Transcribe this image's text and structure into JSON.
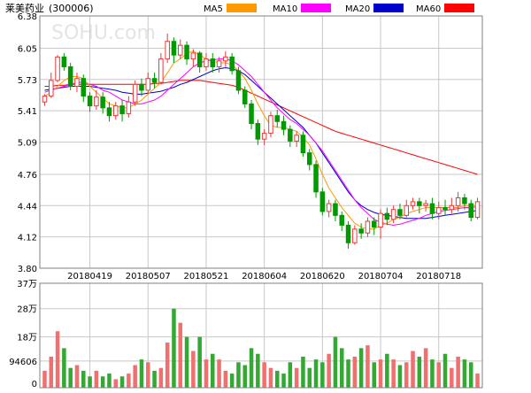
{
  "header": {
    "name": "莱美药业",
    "code": "(300006)"
  },
  "legend": [
    {
      "label": "MA5",
      "color": "#ff9900"
    },
    {
      "label": "MA10",
      "color": "#ff00ff"
    },
    {
      "label": "MA20",
      "color": "#0000cc"
    },
    {
      "label": "MA60",
      "color": "#ff0000"
    }
  ],
  "colors": {
    "up": "#e8393b",
    "down": "#009900",
    "volume_up": "#f07070",
    "volume_down": "#33a833",
    "grid": "#c8c8c8",
    "border": "#808080"
  },
  "watermark": "SOHU.com",
  "chart_data": [
    {
      "type": "candlestick",
      "y_ticks": [
        "6.38",
        "6.05",
        "5.73",
        "5.41",
        "5.09",
        "4.76",
        "4.44",
        "4.12",
        "3.80"
      ],
      "ylim": [
        3.8,
        6.38
      ],
      "x_tick_labels": [
        "20180419",
        "20180507",
        "20180521",
        "20180604",
        "20180620",
        "20180704",
        "20180718"
      ],
      "x_tick_index": [
        7,
        16,
        25,
        34,
        43,
        52,
        61
      ],
      "series": [
        {
          "name": "MA5"
        },
        {
          "name": "MA10"
        },
        {
          "name": "MA20"
        },
        {
          "name": "MA60"
        }
      ],
      "candles": [
        [
          5.5,
          5.56,
          5.46,
          5.58
        ],
        [
          5.56,
          5.72,
          5.54,
          5.8
        ],
        [
          5.72,
          5.96,
          5.7,
          5.98
        ],
        [
          5.96,
          5.86,
          5.82,
          6.0
        ],
        [
          5.86,
          5.66,
          5.62,
          5.9
        ],
        [
          5.66,
          5.74,
          5.6,
          5.8
        ],
        [
          5.74,
          5.56,
          5.5,
          5.78
        ],
        [
          5.56,
          5.46,
          5.4,
          5.6
        ],
        [
          5.46,
          5.55,
          5.42,
          5.62
        ],
        [
          5.55,
          5.44,
          5.38,
          5.6
        ],
        [
          5.44,
          5.36,
          5.3,
          5.5
        ],
        [
          5.36,
          5.46,
          5.32,
          5.5
        ],
        [
          5.46,
          5.38,
          5.3,
          5.52
        ],
        [
          5.38,
          5.5,
          5.34,
          5.56
        ],
        [
          5.5,
          5.68,
          5.46,
          5.72
        ],
        [
          5.68,
          5.62,
          5.56,
          5.74
        ],
        [
          5.62,
          5.74,
          5.58,
          5.8
        ],
        [
          5.74,
          5.7,
          5.64,
          5.8
        ],
        [
          5.7,
          5.94,
          5.68,
          6.0
        ],
        [
          5.94,
          6.12,
          5.9,
          6.2
        ],
        [
          6.12,
          5.98,
          5.9,
          6.16
        ],
        [
          5.98,
          6.08,
          5.94,
          6.14
        ],
        [
          6.08,
          5.94,
          5.88,
          6.12
        ],
        [
          5.94,
          6.0,
          5.86,
          6.04
        ],
        [
          6.0,
          5.86,
          5.8,
          6.02
        ],
        [
          5.86,
          5.94,
          5.82,
          6.0
        ],
        [
          5.94,
          5.86,
          5.8,
          6.0
        ],
        [
          5.86,
          5.92,
          5.8,
          5.96
        ],
        [
          5.92,
          5.96,
          5.86,
          6.02
        ],
        [
          5.96,
          5.82,
          5.78,
          6.0
        ],
        [
          5.82,
          5.62,
          5.58,
          5.86
        ],
        [
          5.62,
          5.48,
          5.44,
          5.66
        ],
        [
          5.48,
          5.28,
          5.22,
          5.52
        ],
        [
          5.28,
          5.12,
          5.06,
          5.32
        ],
        [
          5.12,
          5.18,
          5.06,
          5.22
        ],
        [
          5.18,
          5.36,
          5.14,
          5.4
        ],
        [
          5.36,
          5.3,
          5.24,
          5.42
        ],
        [
          5.3,
          5.22,
          5.16,
          5.36
        ],
        [
          5.22,
          5.1,
          5.04,
          5.26
        ],
        [
          5.1,
          5.16,
          5.04,
          5.2
        ],
        [
          5.16,
          4.98,
          4.94,
          5.2
        ],
        [
          4.98,
          4.86,
          4.8,
          5.02
        ],
        [
          4.86,
          4.58,
          4.52,
          4.9
        ],
        [
          4.58,
          4.38,
          4.34,
          4.62
        ],
        [
          4.38,
          4.46,
          4.32,
          4.5
        ],
        [
          4.46,
          4.34,
          4.28,
          4.5
        ],
        [
          4.34,
          4.24,
          4.18,
          4.38
        ],
        [
          4.24,
          4.06,
          4.0,
          4.28
        ],
        [
          4.06,
          4.2,
          4.04,
          4.24
        ],
        [
          4.2,
          4.16,
          4.1,
          4.26
        ],
        [
          4.16,
          4.28,
          4.12,
          4.32
        ],
        [
          4.28,
          4.22,
          4.14,
          4.32
        ],
        [
          4.22,
          4.36,
          4.1,
          4.4
        ],
        [
          4.36,
          4.3,
          4.24,
          4.42
        ],
        [
          4.3,
          4.4,
          4.26,
          4.44
        ],
        [
          4.4,
          4.34,
          4.3,
          4.46
        ],
        [
          4.34,
          4.44,
          4.32,
          4.5
        ],
        [
          4.44,
          4.48,
          4.4,
          4.52
        ],
        [
          4.48,
          4.44,
          4.36,
          4.52
        ],
        [
          4.44,
          4.46,
          4.38,
          4.5
        ],
        [
          4.46,
          4.36,
          4.3,
          4.52
        ],
        [
          4.36,
          4.42,
          4.3,
          4.48
        ],
        [
          4.42,
          4.4,
          4.34,
          4.5
        ],
        [
          4.4,
          4.44,
          4.36,
          4.52
        ],
        [
          4.44,
          4.52,
          4.38,
          4.58
        ],
        [
          4.52,
          4.46,
          4.4,
          4.56
        ],
        [
          4.46,
          4.32,
          4.28,
          4.5
        ],
        [
          4.32,
          4.48,
          4.3,
          4.52
        ]
      ],
      "ma": {
        "MA5": [
          5.56,
          5.6,
          5.66,
          5.72,
          5.76,
          5.76,
          5.74,
          5.66,
          5.6,
          5.54,
          5.48,
          5.46,
          5.44,
          5.44,
          5.48,
          5.52,
          5.58,
          5.64,
          5.7,
          5.8,
          5.9,
          5.94,
          6.0,
          6.02,
          5.98,
          5.94,
          5.92,
          5.9,
          5.9,
          5.88,
          5.82,
          5.74,
          5.62,
          5.48,
          5.36,
          5.26,
          5.24,
          5.24,
          5.22,
          5.2,
          5.14,
          5.06,
          4.92,
          4.76,
          4.62,
          4.52,
          4.42,
          4.34,
          4.26,
          4.22,
          4.2,
          4.2,
          4.24,
          4.26,
          4.3,
          4.32,
          4.36,
          4.38,
          4.4,
          4.42,
          4.42,
          4.42,
          4.42,
          4.42,
          4.42,
          4.44,
          4.44,
          4.44
        ],
        "MA10": [
          5.6,
          5.62,
          5.64,
          5.66,
          5.68,
          5.7,
          5.7,
          5.68,
          5.66,
          5.62,
          5.6,
          5.56,
          5.52,
          5.5,
          5.48,
          5.48,
          5.5,
          5.52,
          5.56,
          5.62,
          5.68,
          5.74,
          5.8,
          5.86,
          5.9,
          5.92,
          5.93,
          5.94,
          5.94,
          5.92,
          5.88,
          5.82,
          5.76,
          5.68,
          5.6,
          5.52,
          5.44,
          5.38,
          5.32,
          5.28,
          5.22,
          5.16,
          5.08,
          5.0,
          4.9,
          4.8,
          4.7,
          4.6,
          4.5,
          4.42,
          4.36,
          4.3,
          4.27,
          4.25,
          4.24,
          4.25,
          4.27,
          4.29,
          4.31,
          4.34,
          4.36,
          4.38,
          4.39,
          4.4,
          4.41,
          4.42,
          4.42,
          4.43
        ],
        "MA20": [
          5.62,
          5.63,
          5.64,
          5.65,
          5.66,
          5.66,
          5.66,
          5.66,
          5.65,
          5.64,
          5.63,
          5.62,
          5.6,
          5.59,
          5.58,
          5.58,
          5.59,
          5.6,
          5.61,
          5.63,
          5.65,
          5.68,
          5.7,
          5.73,
          5.76,
          5.79,
          5.82,
          5.84,
          5.85,
          5.84,
          5.82,
          5.78,
          5.72,
          5.66,
          5.6,
          5.54,
          5.48,
          5.42,
          5.36,
          5.3,
          5.24,
          5.16,
          5.08,
          4.98,
          4.88,
          4.78,
          4.68,
          4.58,
          4.5,
          4.44,
          4.4,
          4.37,
          4.35,
          4.34,
          4.33,
          4.32,
          4.31,
          4.31,
          4.31,
          4.31,
          4.32,
          4.33,
          4.34,
          4.35,
          4.36,
          4.37,
          4.38,
          4.39
        ],
        "MA60": [
          5.66,
          5.66,
          5.67,
          5.67,
          5.68,
          5.68,
          5.68,
          5.68,
          5.68,
          5.68,
          5.68,
          5.68,
          5.68,
          5.68,
          5.68,
          5.68,
          5.68,
          5.69,
          5.69,
          5.7,
          5.71,
          5.72,
          5.72,
          5.72,
          5.72,
          5.71,
          5.7,
          5.69,
          5.68,
          5.67,
          5.65,
          5.62,
          5.59,
          5.56,
          5.53,
          5.5,
          5.47,
          5.44,
          5.41,
          5.38,
          5.35,
          5.32,
          5.29,
          5.26,
          5.23,
          5.2,
          5.18,
          5.16,
          5.14,
          5.12,
          5.1,
          5.08,
          5.06,
          5.04,
          5.02,
          5.0,
          4.98,
          4.96,
          4.94,
          4.92,
          4.9,
          4.88,
          4.86,
          4.84,
          4.82,
          4.8,
          4.78,
          4.76
        ]
      }
    },
    {
      "type": "bar",
      "y_ticks": [
        "37万",
        "28万",
        "18万",
        "94606",
        "0"
      ],
      "y_tick_values": [
        370000,
        280000,
        180000,
        94606,
        0
      ],
      "ylim": [
        0,
        370000
      ],
      "values": [
        60000,
        110000,
        200000,
        140000,
        70000,
        80000,
        60000,
        40000,
        60000,
        40000,
        50000,
        30000,
        40000,
        50000,
        80000,
        100000,
        90000,
        60000,
        70000,
        160000,
        280000,
        230000,
        180000,
        130000,
        180000,
        100000,
        120000,
        100000,
        60000,
        50000,
        90000,
        80000,
        140000,
        120000,
        90000,
        70000,
        60000,
        50000,
        90000,
        70000,
        110000,
        70000,
        100000,
        90000,
        120000,
        180000,
        140000,
        100000,
        110000,
        140000,
        150000,
        90000,
        100000,
        120000,
        100000,
        80000,
        90000,
        130000,
        110000,
        140000,
        100000,
        90000,
        120000,
        70000,
        110000,
        100000,
        90000,
        50000
      ],
      "up": [
        true,
        true,
        true,
        false,
        false,
        true,
        false,
        false,
        true,
        false,
        false,
        true,
        false,
        true,
        true,
        false,
        true,
        false,
        true,
        true,
        false,
        true,
        false,
        true,
        false,
        true,
        false,
        true,
        true,
        false,
        false,
        false,
        false,
        false,
        true,
        true,
        false,
        false,
        false,
        true,
        false,
        false,
        false,
        false,
        true,
        false,
        false,
        false,
        true,
        false,
        true,
        false,
        true,
        false,
        true,
        false,
        true,
        true,
        false,
        true,
        false,
        true,
        false,
        true,
        true,
        false,
        false,
        true
      ]
    }
  ]
}
